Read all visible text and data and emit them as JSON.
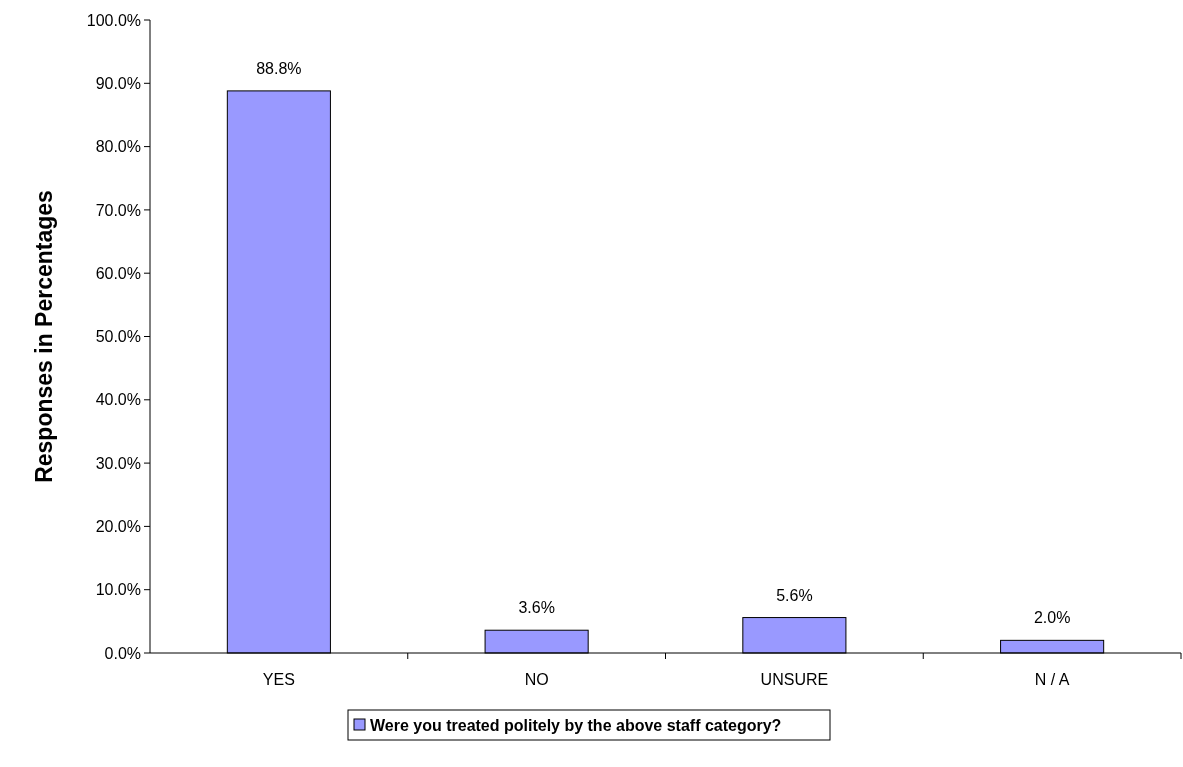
{
  "chart_data": {
    "type": "bar",
    "ylabel": "Responses in Percentages",
    "categories": [
      "YES",
      "NO",
      "UNSURE",
      "N / A"
    ],
    "series": [
      {
        "name": "Were you treated politely by the above staff category?",
        "color": "#9999ff",
        "values": [
          88.8,
          3.6,
          5.6,
          2.0
        ],
        "value_labels": [
          "88.8%",
          "3.6%",
          "5.6%",
          "2.0%"
        ]
      }
    ],
    "ylim": [
      0,
      100
    ],
    "yticks": [
      {
        "value": 0,
        "label": "0.0%"
      },
      {
        "value": 10,
        "label": "10.0%"
      },
      {
        "value": 20,
        "label": "20.0%"
      },
      {
        "value": 30,
        "label": "30.0%"
      },
      {
        "value": 40,
        "label": "40.0%"
      },
      {
        "value": 50,
        "label": "50.0%"
      },
      {
        "value": 60,
        "label": "60.0%"
      },
      {
        "value": 70,
        "label": "70.0%"
      },
      {
        "value": 80,
        "label": "80.0%"
      },
      {
        "value": 90,
        "label": "90.0%"
      },
      {
        "value": 100,
        "label": "100.0%"
      }
    ],
    "grid": false,
    "legend": "bottom"
  }
}
